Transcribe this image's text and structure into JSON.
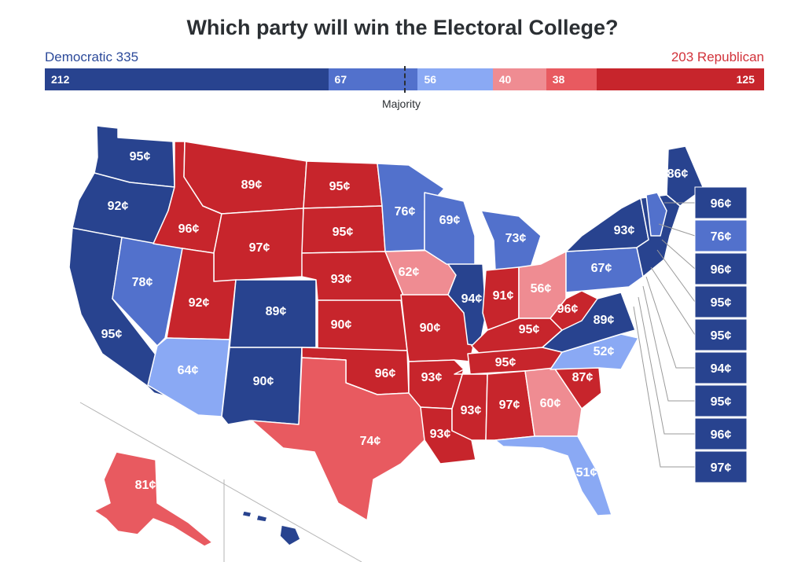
{
  "title": "Which party will win the Electoral College?",
  "democratic_label": "Democratic 335",
  "republican_label": "203 Republican",
  "majority_label": "Majority",
  "colors": {
    "safe_dem": "#28438f",
    "likely_dem": "#5271cc",
    "lean_dem": "#8aa9f4",
    "lean_rep": "#ef8c92",
    "likely_rep": "#e85a60",
    "safe_rep": "#c7252c"
  },
  "bar_segments": [
    {
      "label": "212",
      "value": 212,
      "category": "safe_dem"
    },
    {
      "label": "67",
      "value": 67,
      "category": "likely_dem"
    },
    {
      "label": "56",
      "value": 56,
      "category": "lean_dem"
    },
    {
      "label": "40",
      "value": 40,
      "category": "lean_rep"
    },
    {
      "label": "38",
      "value": 38,
      "category": "likely_rep"
    },
    {
      "label": "125",
      "value": 125,
      "category": "safe_rep"
    }
  ],
  "states": {
    "WA": "95¢",
    "OR": "92¢",
    "CA": "95¢",
    "NV": "78¢",
    "ID": "96¢",
    "MT": "89¢",
    "WY": "97¢",
    "UT": "92¢",
    "AZ": "64¢",
    "CO": "89¢",
    "NM": "90¢",
    "ND": "95¢",
    "SD": "95¢",
    "NE": "93¢",
    "KS": "90¢",
    "OK": "96¢",
    "TX": "74¢",
    "MN": "76¢",
    "IA": "62¢",
    "MO": "90¢",
    "AR": "93¢",
    "LA": "93¢",
    "WI": "69¢",
    "IL": "94¢",
    "MI": "73¢",
    "IN": "91¢",
    "OH": "56¢",
    "KY": "95¢",
    "TN": "95¢",
    "MS": "93¢",
    "AL": "97¢",
    "GA": "60¢",
    "FL": "51¢",
    "SC": "87¢",
    "NC": "52¢",
    "VA": "89¢",
    "WV": "96¢",
    "PA": "67¢",
    "NY": "93¢",
    "ME": "86¢",
    "AK": "81¢"
  },
  "ne_boxes": [
    "96¢",
    "76¢",
    "96¢",
    "95¢",
    "95¢",
    "94¢",
    "95¢",
    "96¢",
    "97¢"
  ]
}
